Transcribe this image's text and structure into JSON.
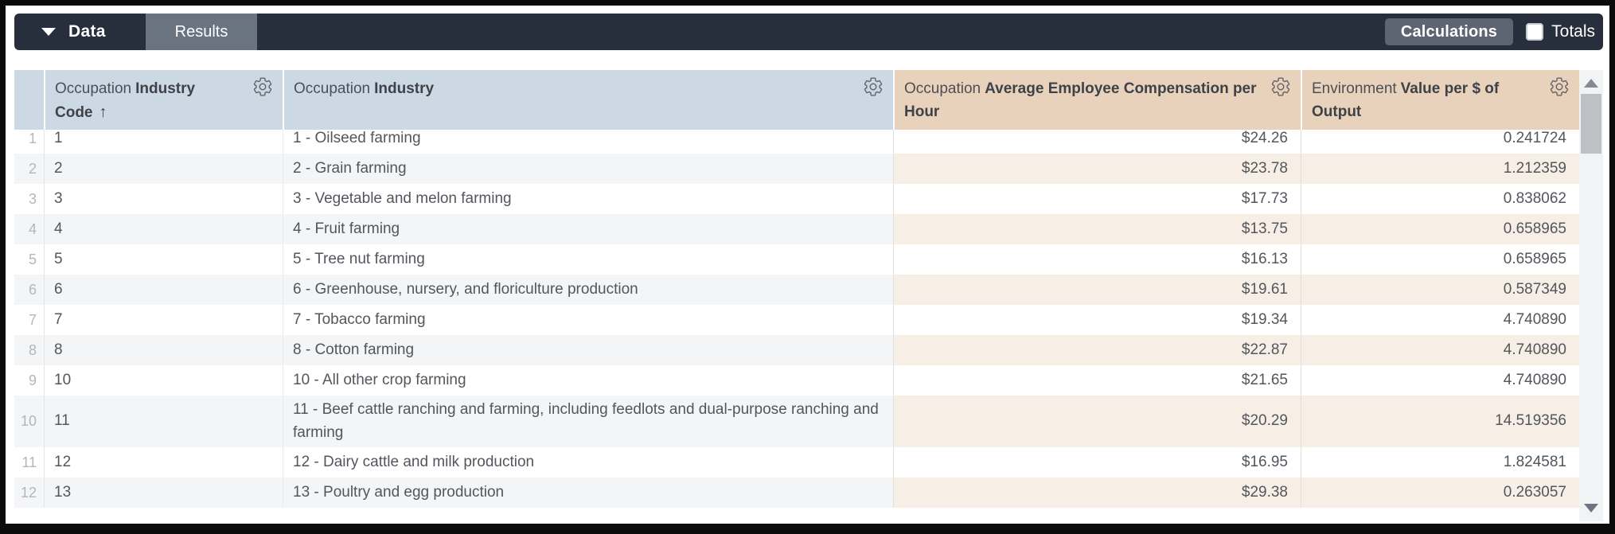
{
  "toolbar": {
    "data_tab": "Data",
    "results_tab": "Results",
    "calculations_button": "Calculations",
    "totals_label": "Totals",
    "totals_checked": false
  },
  "table": {
    "columns": [
      {
        "prefix": "Occupation",
        "title": "Industry Code",
        "sort_indicator": "↑"
      },
      {
        "prefix": "Occupation",
        "title": "Industry"
      },
      {
        "prefix": "Occupation",
        "title": "Average Employee Compensation per Hour"
      },
      {
        "prefix": "Environment",
        "title": "Value per $ of Output"
      }
    ],
    "rows": [
      {
        "n": 1,
        "code": "1",
        "industry": "1 - Oilseed farming",
        "compensation": "$24.26",
        "environment": "0.241724"
      },
      {
        "n": 2,
        "code": "2",
        "industry": "2 - Grain farming",
        "compensation": "$23.78",
        "environment": "1.212359"
      },
      {
        "n": 3,
        "code": "3",
        "industry": "3 - Vegetable and melon farming",
        "compensation": "$17.73",
        "environment": "0.838062"
      },
      {
        "n": 4,
        "code": "4",
        "industry": "4 - Fruit farming",
        "compensation": "$13.75",
        "environment": "0.658965"
      },
      {
        "n": 5,
        "code": "5",
        "industry": "5 - Tree nut farming",
        "compensation": "$16.13",
        "environment": "0.658965"
      },
      {
        "n": 6,
        "code": "6",
        "industry": "6 - Greenhouse, nursery, and floriculture production",
        "compensation": "$19.61",
        "environment": "0.587349"
      },
      {
        "n": 7,
        "code": "7",
        "industry": "7 - Tobacco farming",
        "compensation": "$19.34",
        "environment": "4.740890"
      },
      {
        "n": 8,
        "code": "8",
        "industry": "8 - Cotton farming",
        "compensation": "$22.87",
        "environment": "4.740890"
      },
      {
        "n": 9,
        "code": "10",
        "industry": "10 - All other crop farming",
        "compensation": "$21.65",
        "environment": "4.740890"
      },
      {
        "n": 10,
        "code": "11",
        "industry": "11 - Beef cattle ranching and farming, including feedlots and dual-purpose ranching and farming",
        "compensation": "$20.29",
        "environment": "14.519356"
      },
      {
        "n": 11,
        "code": "12",
        "industry": "12 - Dairy cattle and milk production",
        "compensation": "$16.95",
        "environment": "1.824581"
      },
      {
        "n": 12,
        "code": "13",
        "industry": "13 - Poultry and egg production",
        "compensation": "$29.38",
        "environment": "0.263057"
      }
    ]
  },
  "icons": {
    "tab_caret": "▼",
    "column_settings": "gear",
    "sort_ascending": "↑",
    "scroll_up": "▲",
    "scroll_down": "▼"
  },
  "colors": {
    "topbar_background": "#272f3d",
    "results_tab_background": "#6a7380",
    "calculations_button_background": "#5d6572",
    "occupation_header_background": "#ccd9e5",
    "measure_header_background": "#e9d2bc",
    "even_row_background": "#f3f5f6",
    "even_row_measure_background": "#f7efe6"
  }
}
